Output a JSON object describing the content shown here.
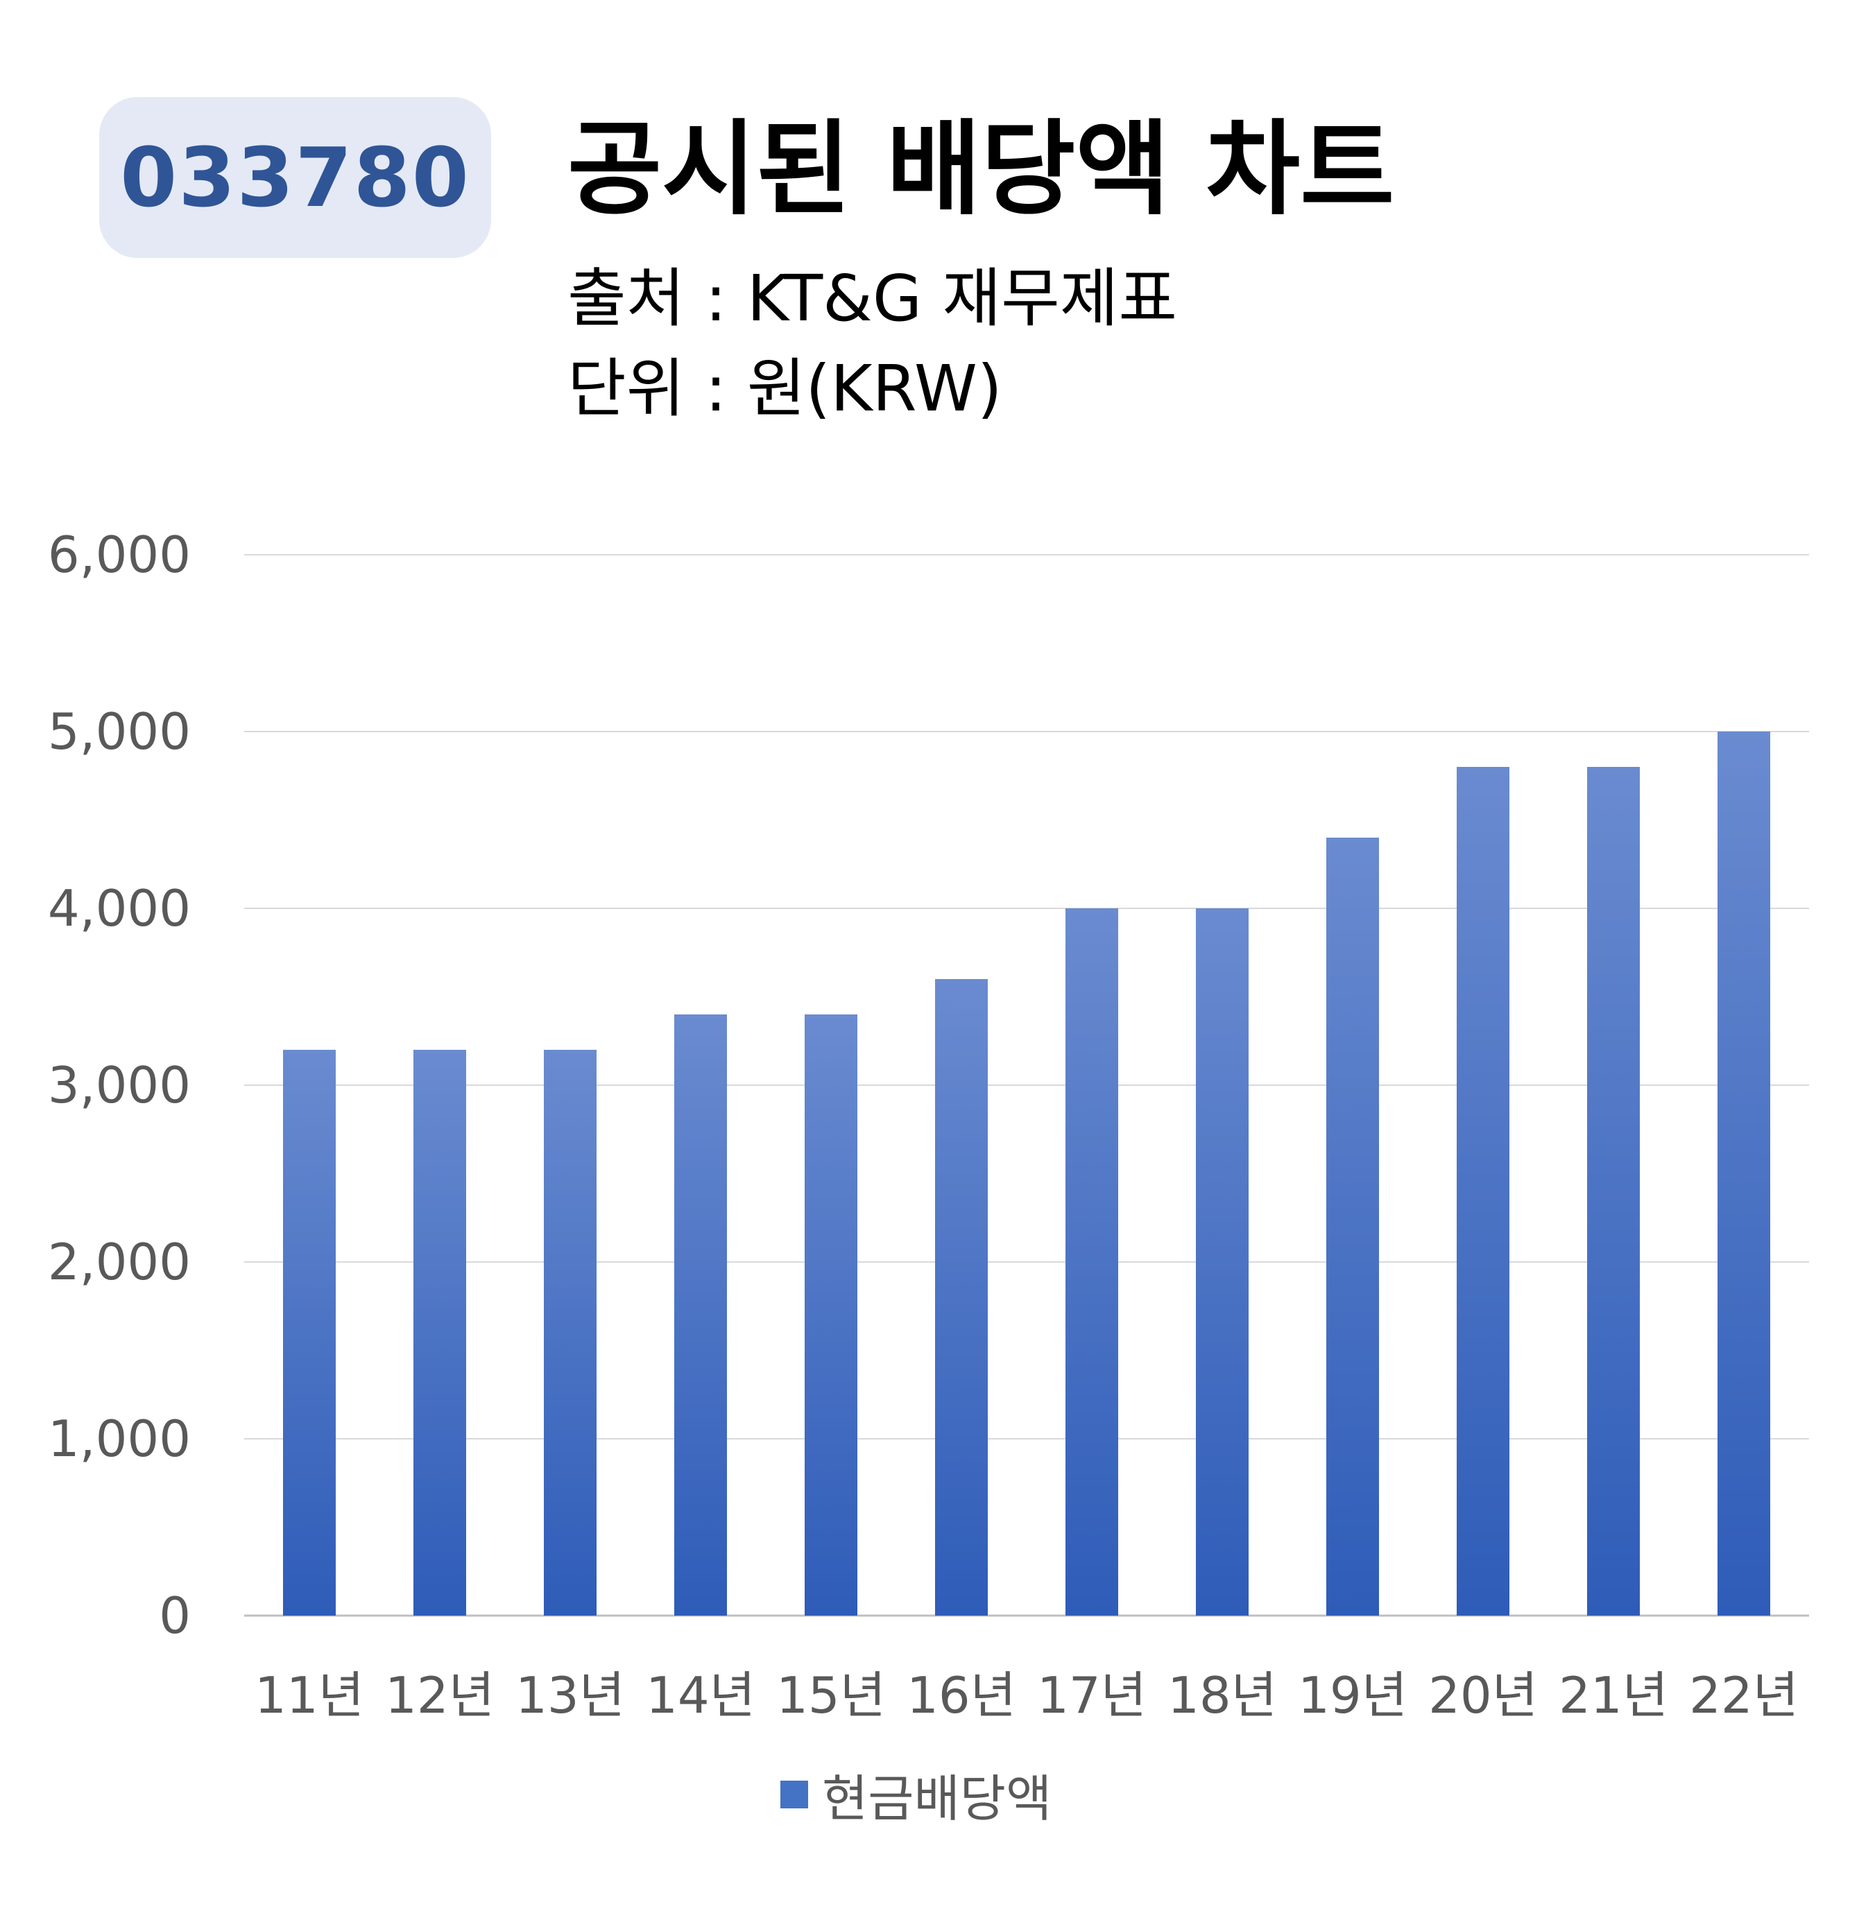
{
  "header": {
    "ticker": "033780",
    "title": "공시된 배당액 차트",
    "source": "출처 : KT&G 재무제표",
    "unit": "단위 : 원(KRW)"
  },
  "colors": {
    "bar_top": "#6a8bd0",
    "bar_bottom": "#2e5cb8",
    "badge_bg": "#e4e9f5",
    "badge_text": "#2f5597",
    "grid": "#d9d9d9"
  },
  "chart_data": {
    "type": "bar",
    "categories": [
      "11년",
      "12년",
      "13년",
      "14년",
      "15년",
      "16년",
      "17년",
      "18년",
      "19년",
      "20년",
      "21년",
      "22년"
    ],
    "series": [
      {
        "name": "현금배당액",
        "values": [
          3200,
          3200,
          3200,
          3400,
          3400,
          3600,
          4000,
          4000,
          4400,
          4800,
          4800,
          5000
        ]
      }
    ],
    "ylim": [
      0,
      6000
    ],
    "yticks": [
      0,
      1000,
      2000,
      3000,
      4000,
      5000,
      6000
    ],
    "ytick_labels": [
      "0",
      "1,000",
      "2,000",
      "3,000",
      "4,000",
      "5,000",
      "6,000"
    ],
    "grid": true,
    "legend_position": "bottom"
  }
}
